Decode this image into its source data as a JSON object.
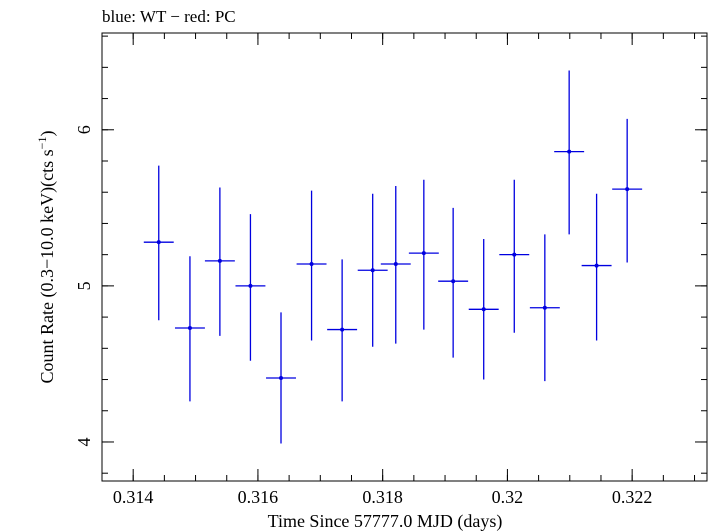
{
  "chart_data": {
    "type": "scatter",
    "title": "blue: WT − red: PC",
    "xlabel": "Time Since 57777.0 MJD (days)",
    "ylabel_main": "Count Rate (0.3−10.0 keV)(cts s",
    "ylabel_sup": "−1",
    "ylabel_end": ")",
    "xlim": [
      0.3135,
      0.3232
    ],
    "ylim": [
      3.75,
      6.62
    ],
    "x_ticks": [
      {
        "value": 0.314,
        "label": "0.314"
      },
      {
        "value": 0.316,
        "label": "0.316"
      },
      {
        "value": 0.318,
        "label": "0.318"
      },
      {
        "value": 0.32,
        "label": "0.32"
      },
      {
        "value": 0.322,
        "label": "0.322"
      }
    ],
    "x_minor_step": 0.0005,
    "y_ticks": [
      {
        "value": 4,
        "label": "4"
      },
      {
        "value": 5,
        "label": "5"
      },
      {
        "value": 6,
        "label": "6"
      }
    ],
    "y_minor_step": 0.2,
    "series": [
      {
        "name": "WT",
        "color": "#0000e0",
        "points": [
          {
            "x": 0.31441,
            "xerr": 0.00024,
            "y": 5.28,
            "ylo": 4.78,
            "yhi": 5.77
          },
          {
            "x": 0.31491,
            "xerr": 0.00024,
            "y": 4.73,
            "ylo": 4.26,
            "yhi": 5.19
          },
          {
            "x": 0.31539,
            "xerr": 0.00024,
            "y": 5.16,
            "ylo": 4.68,
            "yhi": 5.63
          },
          {
            "x": 0.31588,
            "xerr": 0.00024,
            "y": 5.0,
            "ylo": 4.52,
            "yhi": 5.46
          },
          {
            "x": 0.31637,
            "xerr": 0.00024,
            "y": 4.41,
            "ylo": 3.99,
            "yhi": 4.83
          },
          {
            "x": 0.31686,
            "xerr": 0.00024,
            "y": 5.14,
            "ylo": 4.65,
            "yhi": 5.61
          },
          {
            "x": 0.31735,
            "xerr": 0.00024,
            "y": 4.72,
            "ylo": 4.26,
            "yhi": 5.17
          },
          {
            "x": 0.31784,
            "xerr": 0.00024,
            "y": 5.1,
            "ylo": 4.61,
            "yhi": 5.59
          },
          {
            "x": 0.31821,
            "xerr": 0.00024,
            "y": 5.14,
            "ylo": 4.63,
            "yhi": 5.64
          },
          {
            "x": 0.31866,
            "xerr": 0.00024,
            "y": 5.21,
            "ylo": 4.72,
            "yhi": 5.68
          },
          {
            "x": 0.31913,
            "xerr": 0.00024,
            "y": 5.03,
            "ylo": 4.54,
            "yhi": 5.5
          },
          {
            "x": 0.31962,
            "xerr": 0.00024,
            "y": 4.85,
            "ylo": 4.4,
            "yhi": 5.3
          },
          {
            "x": 0.32011,
            "xerr": 0.00024,
            "y": 5.2,
            "ylo": 4.7,
            "yhi": 5.68
          },
          {
            "x": 0.3206,
            "xerr": 0.00024,
            "y": 4.86,
            "ylo": 4.39,
            "yhi": 5.33
          },
          {
            "x": 0.32099,
            "xerr": 0.00024,
            "y": 5.86,
            "ylo": 5.33,
            "yhi": 6.38
          },
          {
            "x": 0.32143,
            "xerr": 0.00024,
            "y": 5.13,
            "ylo": 4.65,
            "yhi": 5.59
          },
          {
            "x": 0.32192,
            "xerr": 0.00024,
            "y": 5.62,
            "ylo": 5.15,
            "yhi": 6.07
          }
        ]
      }
    ]
  }
}
